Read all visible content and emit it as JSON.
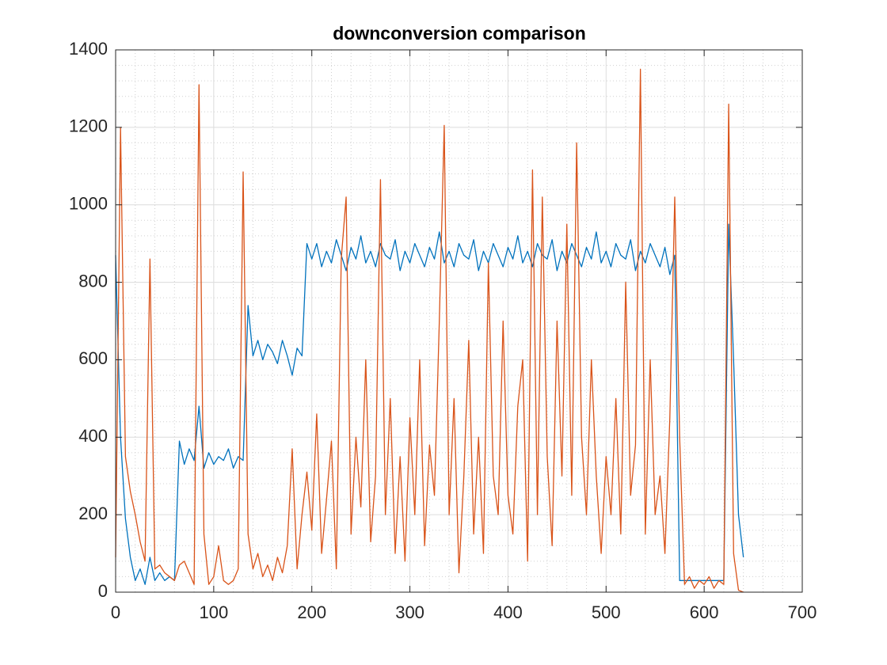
{
  "chart_data": {
    "type": "line",
    "title": "downconversion comparison",
    "x": [
      0,
      5,
      10,
      15,
      20,
      25,
      30,
      35,
      40,
      45,
      50,
      55,
      60,
      65,
      70,
      75,
      80,
      85,
      90,
      95,
      100,
      105,
      110,
      115,
      120,
      125,
      130,
      135,
      140,
      145,
      150,
      155,
      160,
      165,
      170,
      175,
      180,
      185,
      190,
      195,
      200,
      205,
      210,
      215,
      220,
      225,
      230,
      235,
      240,
      245,
      250,
      255,
      260,
      265,
      270,
      275,
      280,
      285,
      290,
      295,
      300,
      305,
      310,
      315,
      320,
      325,
      330,
      335,
      340,
      345,
      350,
      355,
      360,
      365,
      370,
      375,
      380,
      385,
      390,
      395,
      400,
      405,
      410,
      415,
      420,
      425,
      430,
      435,
      440,
      445,
      450,
      455,
      460,
      465,
      470,
      475,
      480,
      485,
      490,
      495,
      500,
      505,
      510,
      515,
      520,
      525,
      530,
      535,
      540,
      545,
      550,
      555,
      560,
      565,
      570,
      575,
      580,
      585,
      590,
      595,
      600,
      605,
      610,
      615,
      620,
      625,
      630,
      635,
      640
    ],
    "series": [
      {
        "color": "#0072BD",
        "values": [
          870,
          400,
          190,
          90,
          30,
          60,
          20,
          90,
          30,
          50,
          30,
          40,
          30,
          390,
          330,
          370,
          340,
          480,
          320,
          360,
          330,
          350,
          340,
          370,
          320,
          350,
          340,
          740,
          610,
          650,
          600,
          640,
          620,
          590,
          650,
          610,
          560,
          630,
          610,
          900,
          860,
          900,
          840,
          880,
          850,
          910,
          870,
          830,
          890,
          860,
          920,
          850,
          880,
          840,
          900,
          870,
          860,
          910,
          830,
          880,
          850,
          900,
          870,
          840,
          890,
          860,
          930,
          850,
          880,
          840,
          900,
          870,
          860,
          910,
          830,
          880,
          850,
          900,
          870,
          840,
          890,
          860,
          920,
          850,
          880,
          840,
          900,
          870,
          860,
          910,
          830,
          880,
          850,
          900,
          870,
          840,
          890,
          860,
          930,
          850,
          880,
          840,
          900,
          870,
          860,
          910,
          830,
          880,
          850,
          900,
          870,
          840,
          890,
          820,
          870,
          30,
          30,
          30,
          30,
          30,
          30,
          30,
          30,
          30,
          30,
          950,
          600,
          200,
          90
        ]
      },
      {
        "color": "#D95319",
        "values": [
          90,
          1200,
          350,
          260,
          200,
          130,
          80,
          860,
          60,
          70,
          50,
          40,
          30,
          70,
          80,
          50,
          20,
          1310,
          150,
          20,
          40,
          120,
          30,
          20,
          30,
          60,
          1085,
          150,
          60,
          100,
          40,
          70,
          30,
          90,
          50,
          120,
          370,
          60,
          200,
          310,
          160,
          460,
          100,
          240,
          390,
          60,
          860,
          1020,
          150,
          400,
          220,
          600,
          130,
          300,
          1065,
          200,
          500,
          100,
          350,
          80,
          450,
          200,
          600,
          120,
          380,
          250,
          700,
          1205,
          200,
          500,
          50,
          300,
          650,
          150,
          400,
          100,
          850,
          300,
          200,
          700,
          250,
          150,
          480,
          600,
          80,
          1090,
          200,
          1020,
          350,
          120,
          700,
          300,
          950,
          250,
          1160,
          400,
          200,
          600,
          300,
          100,
          350,
          200,
          500,
          150,
          800,
          250,
          380,
          1350,
          150,
          600,
          200,
          300,
          100,
          450,
          1020,
          400,
          20,
          40,
          10,
          30,
          20,
          40,
          10,
          30,
          20,
          1260,
          100,
          5,
          0
        ]
      }
    ],
    "xlim": [
      0,
      700
    ],
    "xticks": [
      0,
      100,
      200,
      300,
      400,
      500,
      600,
      700
    ],
    "ylim": [
      0,
      1400
    ],
    "yticks": [
      0,
      200,
      400,
      600,
      800,
      1000,
      1200,
      1400
    ],
    "grid": true
  }
}
